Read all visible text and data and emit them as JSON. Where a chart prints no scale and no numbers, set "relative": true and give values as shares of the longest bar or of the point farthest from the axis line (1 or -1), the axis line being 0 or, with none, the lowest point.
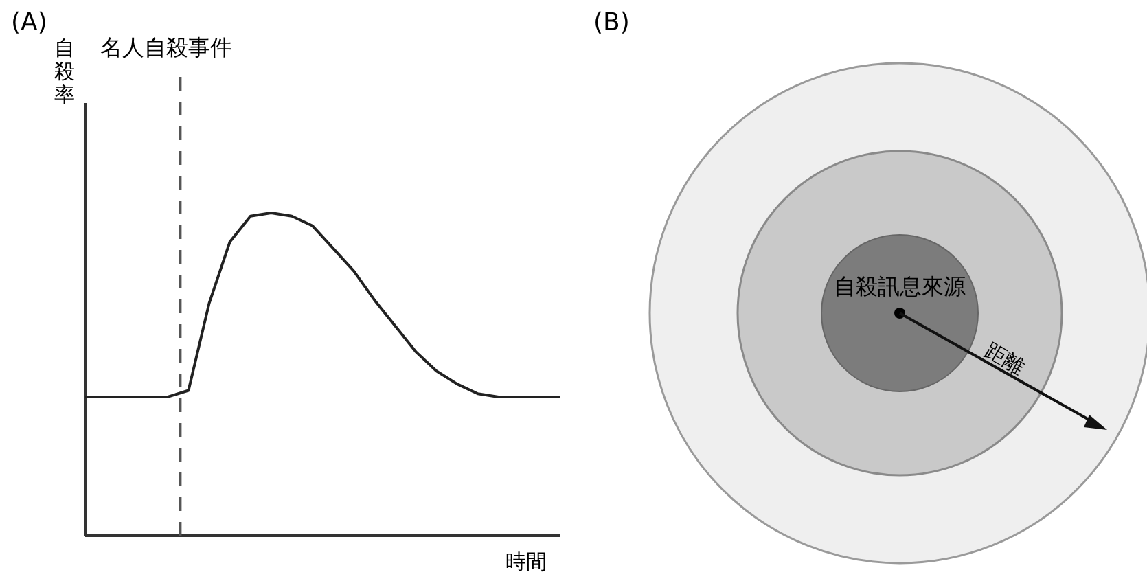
{
  "chart_data": [
    {
      "type": "line",
      "title": "(A)",
      "xlabel": "時間",
      "ylabel": "自殺率",
      "relative": true,
      "categories": [
        null,
        null,
        null,
        null,
        null,
        null,
        null,
        null,
        null,
        null,
        null,
        null,
        null,
        null,
        null,
        null,
        null,
        null,
        null,
        null,
        null,
        null,
        null,
        null
      ],
      "series": [
        {
          "color": "#222222",
          "values": [
            0.43,
            0.43,
            0.43,
            0.43,
            0.43,
            0.45,
            0.72,
            0.91,
            0.99,
            1.0,
            0.99,
            0.96,
            0.89,
            0.82,
            0.73,
            0.65,
            0.57,
            0.51,
            0.47,
            0.44,
            0.43,
            0.43,
            0.43,
            0.43
          ]
        }
      ],
      "annotations": [
        "名人自殺事件"
      ],
      "line_style": "solid"
    },
    {
      "type": "other",
      "title": "(B)",
      "annotations": [
        "自殺訊息來源",
        "距離"
      ]
    }
  ]
}
